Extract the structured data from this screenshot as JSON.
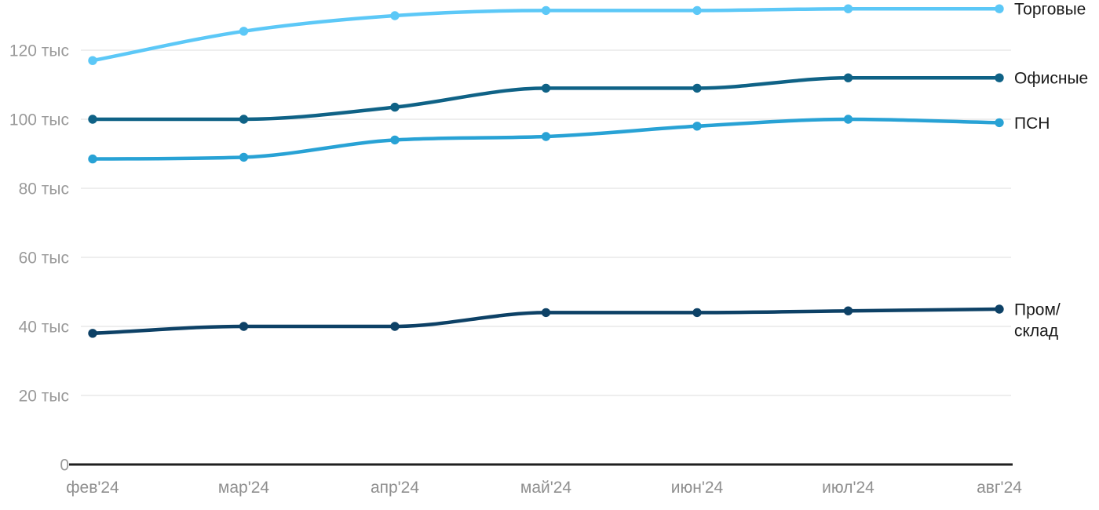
{
  "chart_data": {
    "type": "line",
    "title": "",
    "xlabel": "",
    "ylabel": "",
    "x": [
      "фев'24",
      "мар'24",
      "апр'24",
      "май'24",
      "июн'24",
      "июл'24",
      "авг'24"
    ],
    "series": [
      {
        "name": "Торговые",
        "slug": "torgovye",
        "color": "#5cc8f7",
        "values": [
          117,
          125.5,
          130,
          131.5,
          131.5,
          132,
          132
        ]
      },
      {
        "name": "Офисные",
        "slug": "ofisnye",
        "color": "#0f6286",
        "values": [
          100,
          100,
          103.5,
          109,
          109,
          112,
          112
        ]
      },
      {
        "name": "ПСН",
        "slug": "psn",
        "color": "#28a2d5",
        "values": [
          88.5,
          89,
          94,
          95,
          98,
          100,
          99
        ]
      },
      {
        "name": "Пром/склад",
        "slug": "prom-sklad",
        "color": "#0d4166",
        "label_lines": [
          "Пром/",
          "склад"
        ],
        "values": [
          38,
          40,
          40,
          44,
          44,
          44.5,
          45
        ]
      }
    ],
    "yticks": [
      {
        "value": 0,
        "label": "0"
      },
      {
        "value": 20,
        "label": "20 тыс"
      },
      {
        "value": 40,
        "label": "40 тыс"
      },
      {
        "value": 60,
        "label": "60 тыс"
      },
      {
        "value": 80,
        "label": "80 тыс"
      },
      {
        "value": 100,
        "label": "100 тыс"
      },
      {
        "value": 120,
        "label": "120 тыс"
      }
    ],
    "ylim": [
      0,
      134
    ],
    "grid": "horizontal",
    "legend_position": "right-of-line-ends",
    "colors": {
      "grid_line": "#e9e9e9",
      "axis_line": "#1f1f1f",
      "y_tick_text": "#9a9a9a",
      "x_tick_text": "#8f8f8f",
      "series_label_text": "#1a1a1a",
      "background": "#ffffff"
    }
  }
}
